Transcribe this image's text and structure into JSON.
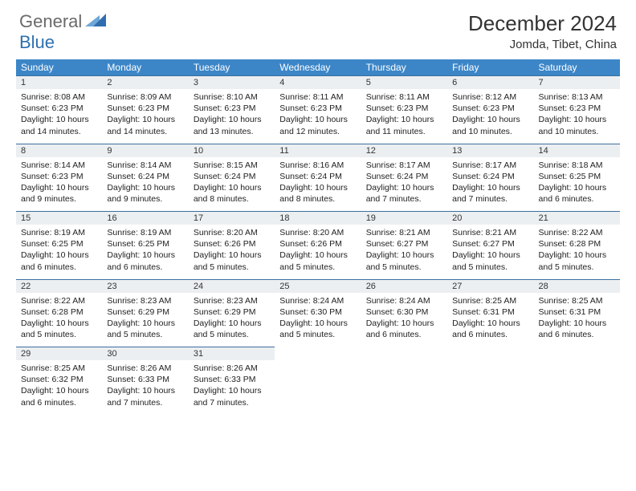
{
  "logo": {
    "general": "General",
    "blue": "Blue"
  },
  "header": {
    "month_title": "December 2024",
    "location": "Jomda, Tibet, China"
  },
  "colors": {
    "header_bg": "#3c86c8",
    "header_text": "#ffffff",
    "daynum_bg": "#eceff1",
    "row_divider": "#3c6fa0",
    "logo_gray": "#6a6a6a",
    "logo_blue": "#2f6fb0",
    "triangle_light": "#6fa7d6",
    "triangle_dark": "#2f6fb0"
  },
  "weekdays": [
    "Sunday",
    "Monday",
    "Tuesday",
    "Wednesday",
    "Thursday",
    "Friday",
    "Saturday"
  ],
  "days": [
    {
      "n": "1",
      "sunrise": "8:08 AM",
      "sunset": "6:23 PM",
      "day_h": "10",
      "day_m": "14"
    },
    {
      "n": "2",
      "sunrise": "8:09 AM",
      "sunset": "6:23 PM",
      "day_h": "10",
      "day_m": "14"
    },
    {
      "n": "3",
      "sunrise": "8:10 AM",
      "sunset": "6:23 PM",
      "day_h": "10",
      "day_m": "13"
    },
    {
      "n": "4",
      "sunrise": "8:11 AM",
      "sunset": "6:23 PM",
      "day_h": "10",
      "day_m": "12"
    },
    {
      "n": "5",
      "sunrise": "8:11 AM",
      "sunset": "6:23 PM",
      "day_h": "10",
      "day_m": "11"
    },
    {
      "n": "6",
      "sunrise": "8:12 AM",
      "sunset": "6:23 PM",
      "day_h": "10",
      "day_m": "10"
    },
    {
      "n": "7",
      "sunrise": "8:13 AM",
      "sunset": "6:23 PM",
      "day_h": "10",
      "day_m": "10"
    },
    {
      "n": "8",
      "sunrise": "8:14 AM",
      "sunset": "6:23 PM",
      "day_h": "10",
      "day_m": "9"
    },
    {
      "n": "9",
      "sunrise": "8:14 AM",
      "sunset": "6:24 PM",
      "day_h": "10",
      "day_m": "9"
    },
    {
      "n": "10",
      "sunrise": "8:15 AM",
      "sunset": "6:24 PM",
      "day_h": "10",
      "day_m": "8"
    },
    {
      "n": "11",
      "sunrise": "8:16 AM",
      "sunset": "6:24 PM",
      "day_h": "10",
      "day_m": "8"
    },
    {
      "n": "12",
      "sunrise": "8:17 AM",
      "sunset": "6:24 PM",
      "day_h": "10",
      "day_m": "7"
    },
    {
      "n": "13",
      "sunrise": "8:17 AM",
      "sunset": "6:24 PM",
      "day_h": "10",
      "day_m": "7"
    },
    {
      "n": "14",
      "sunrise": "8:18 AM",
      "sunset": "6:25 PM",
      "day_h": "10",
      "day_m": "6"
    },
    {
      "n": "15",
      "sunrise": "8:19 AM",
      "sunset": "6:25 PM",
      "day_h": "10",
      "day_m": "6"
    },
    {
      "n": "16",
      "sunrise": "8:19 AM",
      "sunset": "6:25 PM",
      "day_h": "10",
      "day_m": "6"
    },
    {
      "n": "17",
      "sunrise": "8:20 AM",
      "sunset": "6:26 PM",
      "day_h": "10",
      "day_m": "5"
    },
    {
      "n": "18",
      "sunrise": "8:20 AM",
      "sunset": "6:26 PM",
      "day_h": "10",
      "day_m": "5"
    },
    {
      "n": "19",
      "sunrise": "8:21 AM",
      "sunset": "6:27 PM",
      "day_h": "10",
      "day_m": "5"
    },
    {
      "n": "20",
      "sunrise": "8:21 AM",
      "sunset": "6:27 PM",
      "day_h": "10",
      "day_m": "5"
    },
    {
      "n": "21",
      "sunrise": "8:22 AM",
      "sunset": "6:28 PM",
      "day_h": "10",
      "day_m": "5"
    },
    {
      "n": "22",
      "sunrise": "8:22 AM",
      "sunset": "6:28 PM",
      "day_h": "10",
      "day_m": "5"
    },
    {
      "n": "23",
      "sunrise": "8:23 AM",
      "sunset": "6:29 PM",
      "day_h": "10",
      "day_m": "5"
    },
    {
      "n": "24",
      "sunrise": "8:23 AM",
      "sunset": "6:29 PM",
      "day_h": "10",
      "day_m": "5"
    },
    {
      "n": "25",
      "sunrise": "8:24 AM",
      "sunset": "6:30 PM",
      "day_h": "10",
      "day_m": "5"
    },
    {
      "n": "26",
      "sunrise": "8:24 AM",
      "sunset": "6:30 PM",
      "day_h": "10",
      "day_m": "6"
    },
    {
      "n": "27",
      "sunrise": "8:25 AM",
      "sunset": "6:31 PM",
      "day_h": "10",
      "day_m": "6"
    },
    {
      "n": "28",
      "sunrise": "8:25 AM",
      "sunset": "6:31 PM",
      "day_h": "10",
      "day_m": "6"
    },
    {
      "n": "29",
      "sunrise": "8:25 AM",
      "sunset": "6:32 PM",
      "day_h": "10",
      "day_m": "6"
    },
    {
      "n": "30",
      "sunrise": "8:26 AM",
      "sunset": "6:33 PM",
      "day_h": "10",
      "day_m": "7"
    },
    {
      "n": "31",
      "sunrise": "8:26 AM",
      "sunset": "6:33 PM",
      "day_h": "10",
      "day_m": "7"
    }
  ],
  "labels": {
    "sunrise": "Sunrise:",
    "sunset": "Sunset:",
    "daylight": "Daylight:",
    "hours": "hours",
    "and": "and",
    "minutes": "minutes."
  },
  "layout": {
    "start_weekday": 0,
    "total_days": 31,
    "cols": 7
  }
}
